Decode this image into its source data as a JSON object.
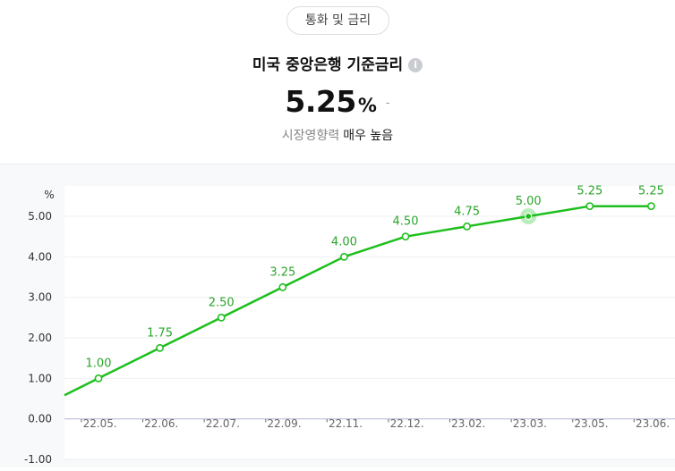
{
  "header": {
    "category": "통화 및 금리",
    "title": "미국 중앙은행 기준금리",
    "info_icon": "info-icon",
    "value": "5.25",
    "unit": "%",
    "change": "-",
    "influence_label": "시장영향력",
    "influence_level": "매우 높음"
  },
  "colors": {
    "line": "#1dbf1d",
    "label": "#2aa52a",
    "zero_line": "#b9bddf",
    "grid": "#eef0f3"
  },
  "chart_data": {
    "type": "line",
    "unit_label": "%",
    "ylim": [
      -1.0,
      5.75
    ],
    "yticks": [
      "5.00",
      "4.00",
      "3.00",
      "2.00",
      "1.00",
      "0.00",
      "-1.00"
    ],
    "ytick_values": [
      5,
      4,
      3,
      2,
      1,
      0,
      -1
    ],
    "categories": [
      "'22.05.",
      "'22.06.",
      "'22.07.",
      "'22.09.",
      "'22.11.",
      "'22.12.",
      "'23.02.",
      "'23.03.",
      "'23.05.",
      "'23.06."
    ],
    "values": [
      1.0,
      1.75,
      2.5,
      3.25,
      4.0,
      4.5,
      4.75,
      5.0,
      5.25,
      5.25
    ],
    "point_labels": [
      "1.00",
      "1.75",
      "2.50",
      "3.25",
      "4.00",
      "4.50",
      "4.75",
      "5.00",
      "5.25",
      "5.25"
    ],
    "highlight_index": 7,
    "grid": true
  }
}
